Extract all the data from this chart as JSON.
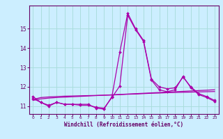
{
  "xlabel": "Windchill (Refroidissement éolien,°C)",
  "background_color": "#cceeff",
  "grid_color": "#aadddd",
  "line_color": "#aa00aa",
  "hours": [
    0,
    1,
    2,
    3,
    4,
    5,
    6,
    7,
    8,
    9,
    10,
    11,
    12,
    13,
    14,
    15,
    16,
    17,
    18,
    19,
    20,
    21,
    22,
    23
  ],
  "curve1": [
    11.5,
    11.2,
    11.0,
    11.2,
    11.1,
    11.1,
    11.1,
    11.1,
    10.9,
    10.85,
    11.5,
    13.8,
    15.8,
    15.0,
    14.4,
    12.4,
    12.0,
    11.9,
    11.95,
    12.5,
    12.0,
    11.65,
    11.5,
    11.3
  ],
  "curve2": [
    11.4,
    11.2,
    11.05,
    11.2,
    11.1,
    11.1,
    11.05,
    11.05,
    10.95,
    10.9,
    11.45,
    12.05,
    15.7,
    14.95,
    14.35,
    12.35,
    11.85,
    11.75,
    11.85,
    12.55,
    11.95,
    11.6,
    11.45,
    11.25
  ],
  "curve3_y": [
    11.35,
    11.45,
    11.48,
    11.5,
    11.52,
    11.53,
    11.54,
    11.55,
    11.56,
    11.57,
    11.58,
    11.6,
    11.62,
    11.63,
    11.65,
    11.67,
    11.68,
    11.7,
    11.71,
    11.72,
    11.73,
    11.74,
    11.75,
    11.76
  ],
  "curve4_y": [
    11.3,
    11.38,
    11.42,
    11.45,
    11.47,
    11.49,
    11.51,
    11.53,
    11.55,
    11.57,
    11.59,
    11.61,
    11.63,
    11.65,
    11.67,
    11.69,
    11.71,
    11.73,
    11.75,
    11.77,
    11.79,
    11.81,
    11.83,
    11.85
  ],
  "ylim_min": 10.6,
  "ylim_max": 16.2,
  "xlim_min": -0.5,
  "xlim_max": 23.5,
  "yticks": [
    11,
    12,
    13,
    14,
    15
  ],
  "xtick_labels": [
    "0",
    "1",
    "2",
    "3",
    "4",
    "5",
    "6",
    "7",
    "8",
    "9",
    "10",
    "11",
    "12",
    "13",
    "14",
    "15",
    "16",
    "17",
    "18",
    "19",
    "20",
    "21",
    "22",
    "23"
  ]
}
